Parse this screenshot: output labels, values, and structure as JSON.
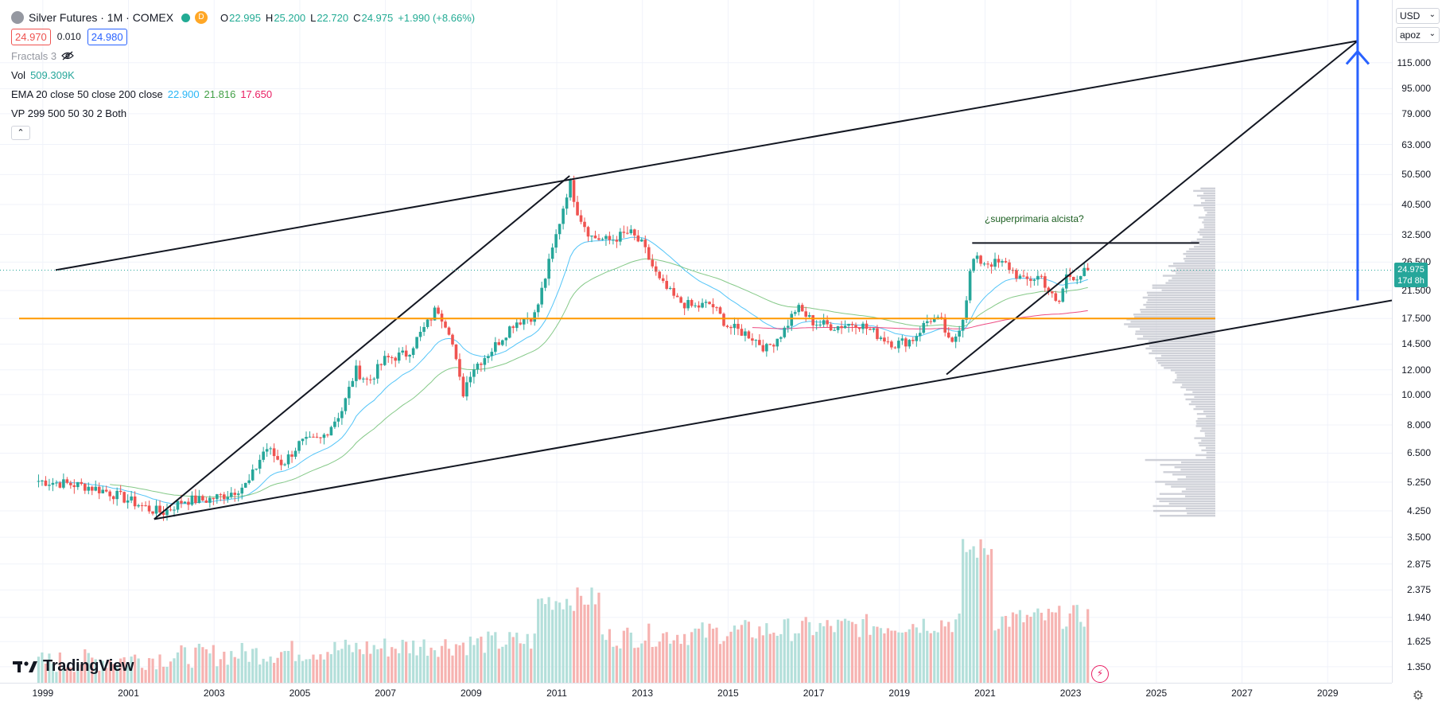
{
  "header": {
    "symbol_title": "Silver Futures · 1M · COMEX",
    "badge": "D",
    "ohlc": {
      "open_label": "O",
      "open": "22.995",
      "high_label": "H",
      "high": "25.200",
      "low_label": "L",
      "low": "22.720",
      "close_label": "C",
      "close": "24.975",
      "change": "+1.990 (+8.66%)"
    },
    "bid": "24.970",
    "spread": "0.010",
    "ask": "24.980"
  },
  "indicators": {
    "fractals": {
      "name": "Fractals 3"
    },
    "volume": {
      "name": "Vol",
      "value": "509.309K"
    },
    "ema": {
      "name": "EMA 20 close 50 close 200 close",
      "v20": "22.900",
      "v50": "21.816",
      "v200": "17.650"
    },
    "vp": {
      "name": "VP 299 500 50 30 2 Both"
    }
  },
  "annotation": "¿superprimaria alcista?",
  "price_axis": {
    "currency": "USD",
    "scale_mode": "apoz",
    "ticks": [
      "115.000",
      "95.000",
      "79.000",
      "63.000",
      "50.500",
      "40.500",
      "32.500",
      "26.500",
      "21.500",
      "17.500",
      "14.500",
      "12.000",
      "10.000",
      "8.000",
      "6.500",
      "5.250",
      "4.250",
      "3.500",
      "2.875",
      "2.375",
      "1.940",
      "1.625",
      "1.350"
    ],
    "last_price": "24.975",
    "countdown": "17d 8h"
  },
  "time_axis": {
    "ticks": [
      "1999",
      "2001",
      "2003",
      "2005",
      "2007",
      "2009",
      "2011",
      "2013",
      "2015",
      "2017",
      "2019",
      "2021",
      "2023",
      "2025",
      "2027",
      "2029"
    ]
  },
  "logo": "TradingView",
  "colors": {
    "up": "#26a69a",
    "down": "#ef5350",
    "ema20": "#29b6f6",
    "ema50": "#66bb6a",
    "ema200": "#e91e63",
    "support_line": "#ff9800",
    "target_arrow": "#2962ff"
  },
  "chart_data": {
    "type": "candlestick",
    "instrument": "Silver Futures",
    "interval": "1M",
    "y_scale": "log",
    "ylim": [
      3.5,
      125
    ],
    "xlim": [
      1998.5,
      2030.5
    ],
    "close_series": {
      "x": [
        1998.9,
        1999.5,
        2000.0,
        2000.5,
        2001.0,
        2001.5,
        2001.8,
        2002.3,
        2002.8,
        2003.3,
        2003.8,
        2004.2,
        2004.6,
        2005.0,
        2005.5,
        2006.0,
        2006.3,
        2006.6,
        2007.0,
        2007.5,
        2008.0,
        2008.2,
        2008.5,
        2008.8,
        2009.0,
        2009.5,
        2010.0,
        2010.5,
        2010.9,
        2011.3,
        2011.5,
        2011.8,
        2012.2,
        2012.7,
        2013.0,
        2013.4,
        2013.8,
        2014.2,
        2014.6,
        2015.0,
        2015.5,
        2015.9,
        2016.3,
        2016.6,
        2017.0,
        2017.5,
        2018.0,
        2018.5,
        2018.9,
        2019.3,
        2019.7,
        2020.0,
        2020.2,
        2020.5,
        2020.7,
        2021.0,
        2021.5,
        2021.9,
        2022.3,
        2022.7,
        2022.9,
        2023.2,
        2023.4
      ],
      "y": [
        5.3,
        5.2,
        5.1,
        4.9,
        4.6,
        4.3,
        4.2,
        4.6,
        4.6,
        4.8,
        5.2,
        6.8,
        6.0,
        7.0,
        7.2,
        9.0,
        12.0,
        11.0,
        13.0,
        13.5,
        17.0,
        19.0,
        16.0,
        10.0,
        12.0,
        14.0,
        17.0,
        18.0,
        29.0,
        48.0,
        38.0,
        32.0,
        31.0,
        33.0,
        30.0,
        23.0,
        20.0,
        19.0,
        19.5,
        16.5,
        15.5,
        14.0,
        16.0,
        19.0,
        17.0,
        16.5,
        17.0,
        15.5,
        14.5,
        15.0,
        17.5,
        17.0,
        14.0,
        18.0,
        27.0,
        26.5,
        26.0,
        23.0,
        24.0,
        19.0,
        24.0,
        24.0,
        24.975
      ]
    },
    "volume_visible": true,
    "ema": {
      "20": 22.9,
      "50": 21.816,
      "200": 17.65
    },
    "drawings": [
      {
        "type": "trend_line",
        "name": "channel-upper",
        "points": [
          [
            1999.3,
            25.0
          ],
          [
            2029.7,
            135.0
          ]
        ]
      },
      {
        "type": "trend_line",
        "name": "channel-lower",
        "points": [
          [
            2001.6,
            4.0
          ],
          [
            2030.5,
            20.0
          ]
        ]
      },
      {
        "type": "trend_line",
        "name": "rally-2001-2011",
        "points": [
          [
            2001.6,
            4.0
          ],
          [
            2011.3,
            50.0
          ]
        ]
      },
      {
        "type": "trend_line",
        "name": "rally-2020",
        "points": [
          [
            2020.1,
            11.6
          ],
          [
            2029.7,
            135.0
          ]
        ]
      },
      {
        "type": "horizontal_segment",
        "name": "resistance-2020",
        "points": [
          [
            2020.7,
            30.5
          ],
          [
            2026.0,
            30.5
          ]
        ]
      },
      {
        "type": "horizontal_line",
        "name": "support-17-5",
        "y": 17.5,
        "color": "#ff9800"
      },
      {
        "type": "arrow",
        "name": "target-arrow",
        "points": [
          [
            2029.7,
            20.0
          ],
          [
            2029.7,
            125.0
          ]
        ],
        "color": "#2962ff"
      }
    ]
  }
}
